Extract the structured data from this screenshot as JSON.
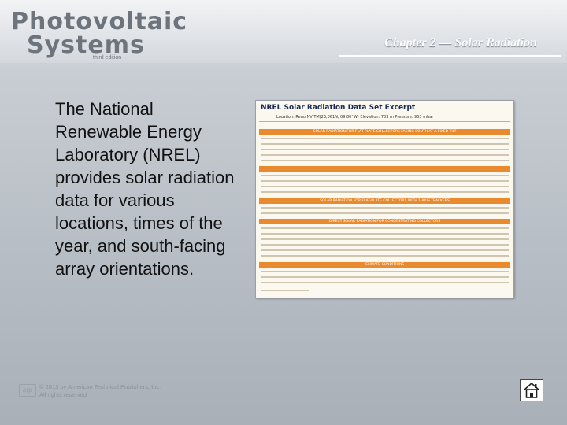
{
  "logo": {
    "line1": "Photovoltaic",
    "line2": "Systems",
    "edition": "third edition"
  },
  "chapter_title": "Chapter 2 — Solar Radiation",
  "body_text": "The National Renewable Energy Laboratory (NREL) provides solar radiation data for various locations, times of the year, and south-facing array orientations.",
  "figure": {
    "title": "NREL Solar Radiation Data Set Excerpt",
    "location_line": "Location: Reno NV  TM(23,061N, 09.80°W)      Elevation: 783 m      Pressure: 953 mbar",
    "section_1": "SOLAR RADIATION FOR FLAT-PLATE COLLECTORS FACING SOUTH AT A FIXED TILT",
    "section_2": "SOLAR RADIATION FOR FLAT-PLATE COLLECTORS WITH 1-AXIS TRACKERS",
    "section_3": "DIRECT SOLAR RADIATION FOR CONCENTRATING COLLECTORS",
    "section_4": "CLIMATE CONDITIONS"
  },
  "footer": {
    "logo": "atp",
    "copyright": "© 2013 by American Technical Publishers, Inc.",
    "rights": "All rights reserved"
  }
}
